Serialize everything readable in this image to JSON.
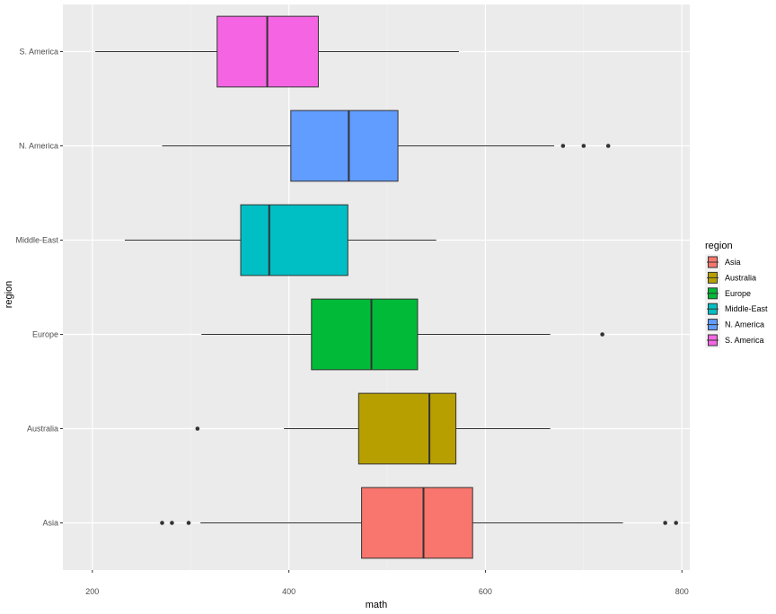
{
  "chart_data": {
    "type": "boxplot",
    "orientation": "horizontal",
    "xlabel": "math",
    "ylabel": "region",
    "xlim": [
      170,
      808
    ],
    "xticks": [
      200,
      400,
      600,
      800
    ],
    "grid": true,
    "legend": {
      "title": "region",
      "placement": "right",
      "entries": [
        {
          "label": "Asia",
          "color": "#F8766D"
        },
        {
          "label": "Australia",
          "color": "#B79F00"
        },
        {
          "label": "Europe",
          "color": "#00BA38"
        },
        {
          "label": "Middle-East",
          "color": "#00BFC4"
        },
        {
          "label": "N. America",
          "color": "#619CFF"
        },
        {
          "label": "S. America",
          "color": "#F564E3"
        }
      ]
    },
    "categories": [
      "Asia",
      "Australia",
      "Europe",
      "Middle-East",
      "N. America",
      "S. America"
    ],
    "boxes": [
      {
        "category": "Asia",
        "color": "#F8766D",
        "lower_whisker": 310,
        "q1": 474,
        "median": 537,
        "q3": 587,
        "upper_whisker": 740,
        "outliers": [
          271,
          281,
          298,
          783,
          794
        ]
      },
      {
        "category": "Australia",
        "color": "#B79F00",
        "lower_whisker": 395,
        "q1": 471,
        "median": 543,
        "q3": 570,
        "upper_whisker": 666,
        "outliers": [
          307
        ]
      },
      {
        "category": "Europe",
        "color": "#00BA38",
        "lower_whisker": 311,
        "q1": 423,
        "median": 484,
        "q3": 531,
        "upper_whisker": 666,
        "outliers": [
          719
        ]
      },
      {
        "category": "Middle-East",
        "color": "#00BFC4",
        "lower_whisker": 233,
        "q1": 351,
        "median": 380,
        "q3": 460,
        "upper_whisker": 550,
        "outliers": []
      },
      {
        "category": "N. America",
        "color": "#619CFF",
        "lower_whisker": 271,
        "q1": 402,
        "median": 461,
        "q3": 511,
        "upper_whisker": 670,
        "outliers": [
          679,
          700,
          725
        ]
      },
      {
        "category": "S. America",
        "color": "#F564E3",
        "lower_whisker": 203,
        "q1": 327,
        "median": 378,
        "q3": 430,
        "upper_whisker": 573,
        "outliers": []
      }
    ]
  }
}
